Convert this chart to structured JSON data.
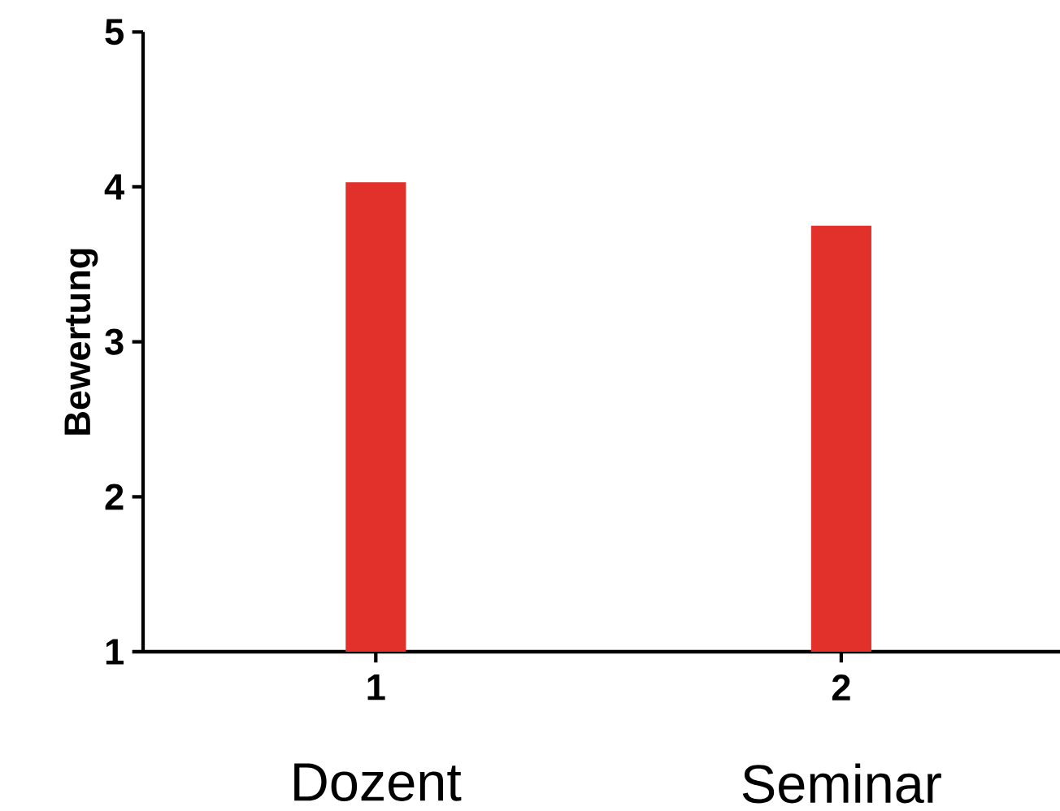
{
  "chart_data": {
    "type": "bar",
    "ylabel": "Bewertung",
    "categories": [
      "1",
      "2"
    ],
    "values": [
      4.03,
      3.75
    ],
    "color": "#e2302a",
    "ylim": [
      1,
      5
    ],
    "yticks": [
      1,
      2,
      3,
      4,
      5
    ],
    "grid": false,
    "annotations": [
      "Dozent",
      "Seminar"
    ]
  }
}
